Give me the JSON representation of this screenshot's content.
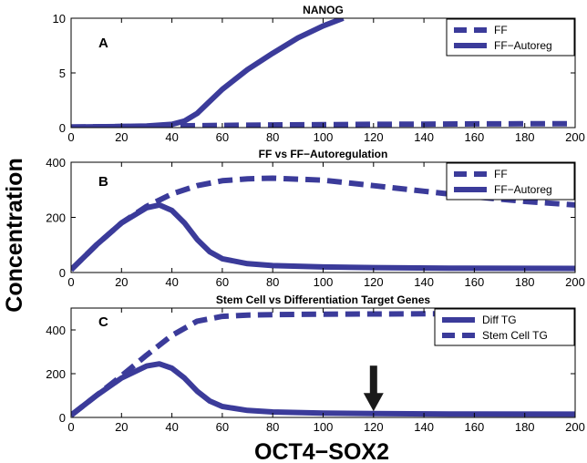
{
  "figure": {
    "ylabel": "Concentration",
    "xlabel": "OCT4−SOX2",
    "line_color": "#3b3b9a",
    "arrow_color": "#1a1a1a"
  },
  "chart_data": [
    {
      "type": "line",
      "panel": "A",
      "title": "NANOG",
      "xlim": [
        0,
        200
      ],
      "ylim": [
        0,
        10
      ],
      "xticks": [
        0,
        20,
        40,
        60,
        80,
        100,
        120,
        140,
        160,
        180,
        200
      ],
      "yticks": [
        0,
        5,
        10
      ],
      "legend_position": "top-right",
      "grid": false,
      "series": [
        {
          "name": "FF",
          "style": "dashed",
          "x": [
            0,
            20,
            40,
            60,
            80,
            100,
            120,
            140,
            160,
            180,
            198
          ],
          "y": [
            0.05,
            0.1,
            0.15,
            0.2,
            0.24,
            0.27,
            0.3,
            0.32,
            0.34,
            0.35,
            0.36
          ]
        },
        {
          "name": "FF−Autoreg",
          "style": "solid",
          "x": [
            0,
            20,
            30,
            40,
            45,
            50,
            55,
            60,
            70,
            80,
            90,
            100,
            108
          ],
          "y": [
            0.05,
            0.1,
            0.15,
            0.3,
            0.6,
            1.3,
            2.4,
            3.5,
            5.3,
            6.8,
            8.2,
            9.3,
            10
          ]
        }
      ]
    },
    {
      "type": "line",
      "panel": "B",
      "title": "FF vs FF−Autoregulation",
      "xlim": [
        0,
        200
      ],
      "ylim": [
        0,
        400
      ],
      "xticks": [
        0,
        20,
        40,
        60,
        80,
        100,
        120,
        140,
        160,
        180,
        200
      ],
      "yticks": [
        0,
        200,
        400
      ],
      "legend_position": "top-right",
      "grid": false,
      "series": [
        {
          "name": "FF",
          "style": "dashed",
          "x": [
            0,
            10,
            20,
            30,
            40,
            50,
            60,
            70,
            80,
            100,
            120,
            140,
            160,
            180,
            200
          ],
          "y": [
            10,
            100,
            180,
            240,
            285,
            315,
            333,
            340,
            342,
            335,
            315,
            295,
            275,
            258,
            245
          ]
        },
        {
          "name": "FF−Autoreg",
          "style": "solid",
          "x": [
            0,
            10,
            20,
            30,
            35,
            40,
            45,
            50,
            55,
            60,
            70,
            80,
            100,
            120,
            150,
            200
          ],
          "y": [
            10,
            100,
            180,
            235,
            245,
            225,
            180,
            120,
            75,
            50,
            32,
            25,
            20,
            18,
            16,
            15
          ]
        }
      ]
    },
    {
      "type": "line",
      "panel": "C",
      "title": "Stem Cell vs Differentiation Target Genes",
      "xlim": [
        0,
        200
      ],
      "ylim": [
        0,
        500
      ],
      "xticks": [
        0,
        20,
        40,
        60,
        80,
        100,
        120,
        140,
        160,
        180,
        200
      ],
      "yticks": [
        0,
        200,
        400
      ],
      "legend_position": "top-right",
      "grid": false,
      "annotation": {
        "type": "arrow",
        "x": 120,
        "y": 20
      },
      "series": [
        {
          "name": "Diff TG",
          "style": "solid",
          "x": [
            0,
            10,
            20,
            30,
            35,
            40,
            45,
            50,
            55,
            60,
            70,
            80,
            100,
            120,
            150,
            200
          ],
          "y": [
            10,
            100,
            180,
            235,
            245,
            225,
            180,
            120,
            75,
            50,
            32,
            25,
            20,
            18,
            16,
            15
          ]
        },
        {
          "name": "Stem Cell TG",
          "style": "dashed",
          "x": [
            0,
            10,
            20,
            30,
            40,
            50,
            60,
            70,
            80,
            100,
            120,
            150,
            200
          ],
          "y": [
            10,
            100,
            190,
            285,
            375,
            440,
            462,
            468,
            470,
            472,
            473,
            474,
            474
          ]
        }
      ]
    }
  ]
}
